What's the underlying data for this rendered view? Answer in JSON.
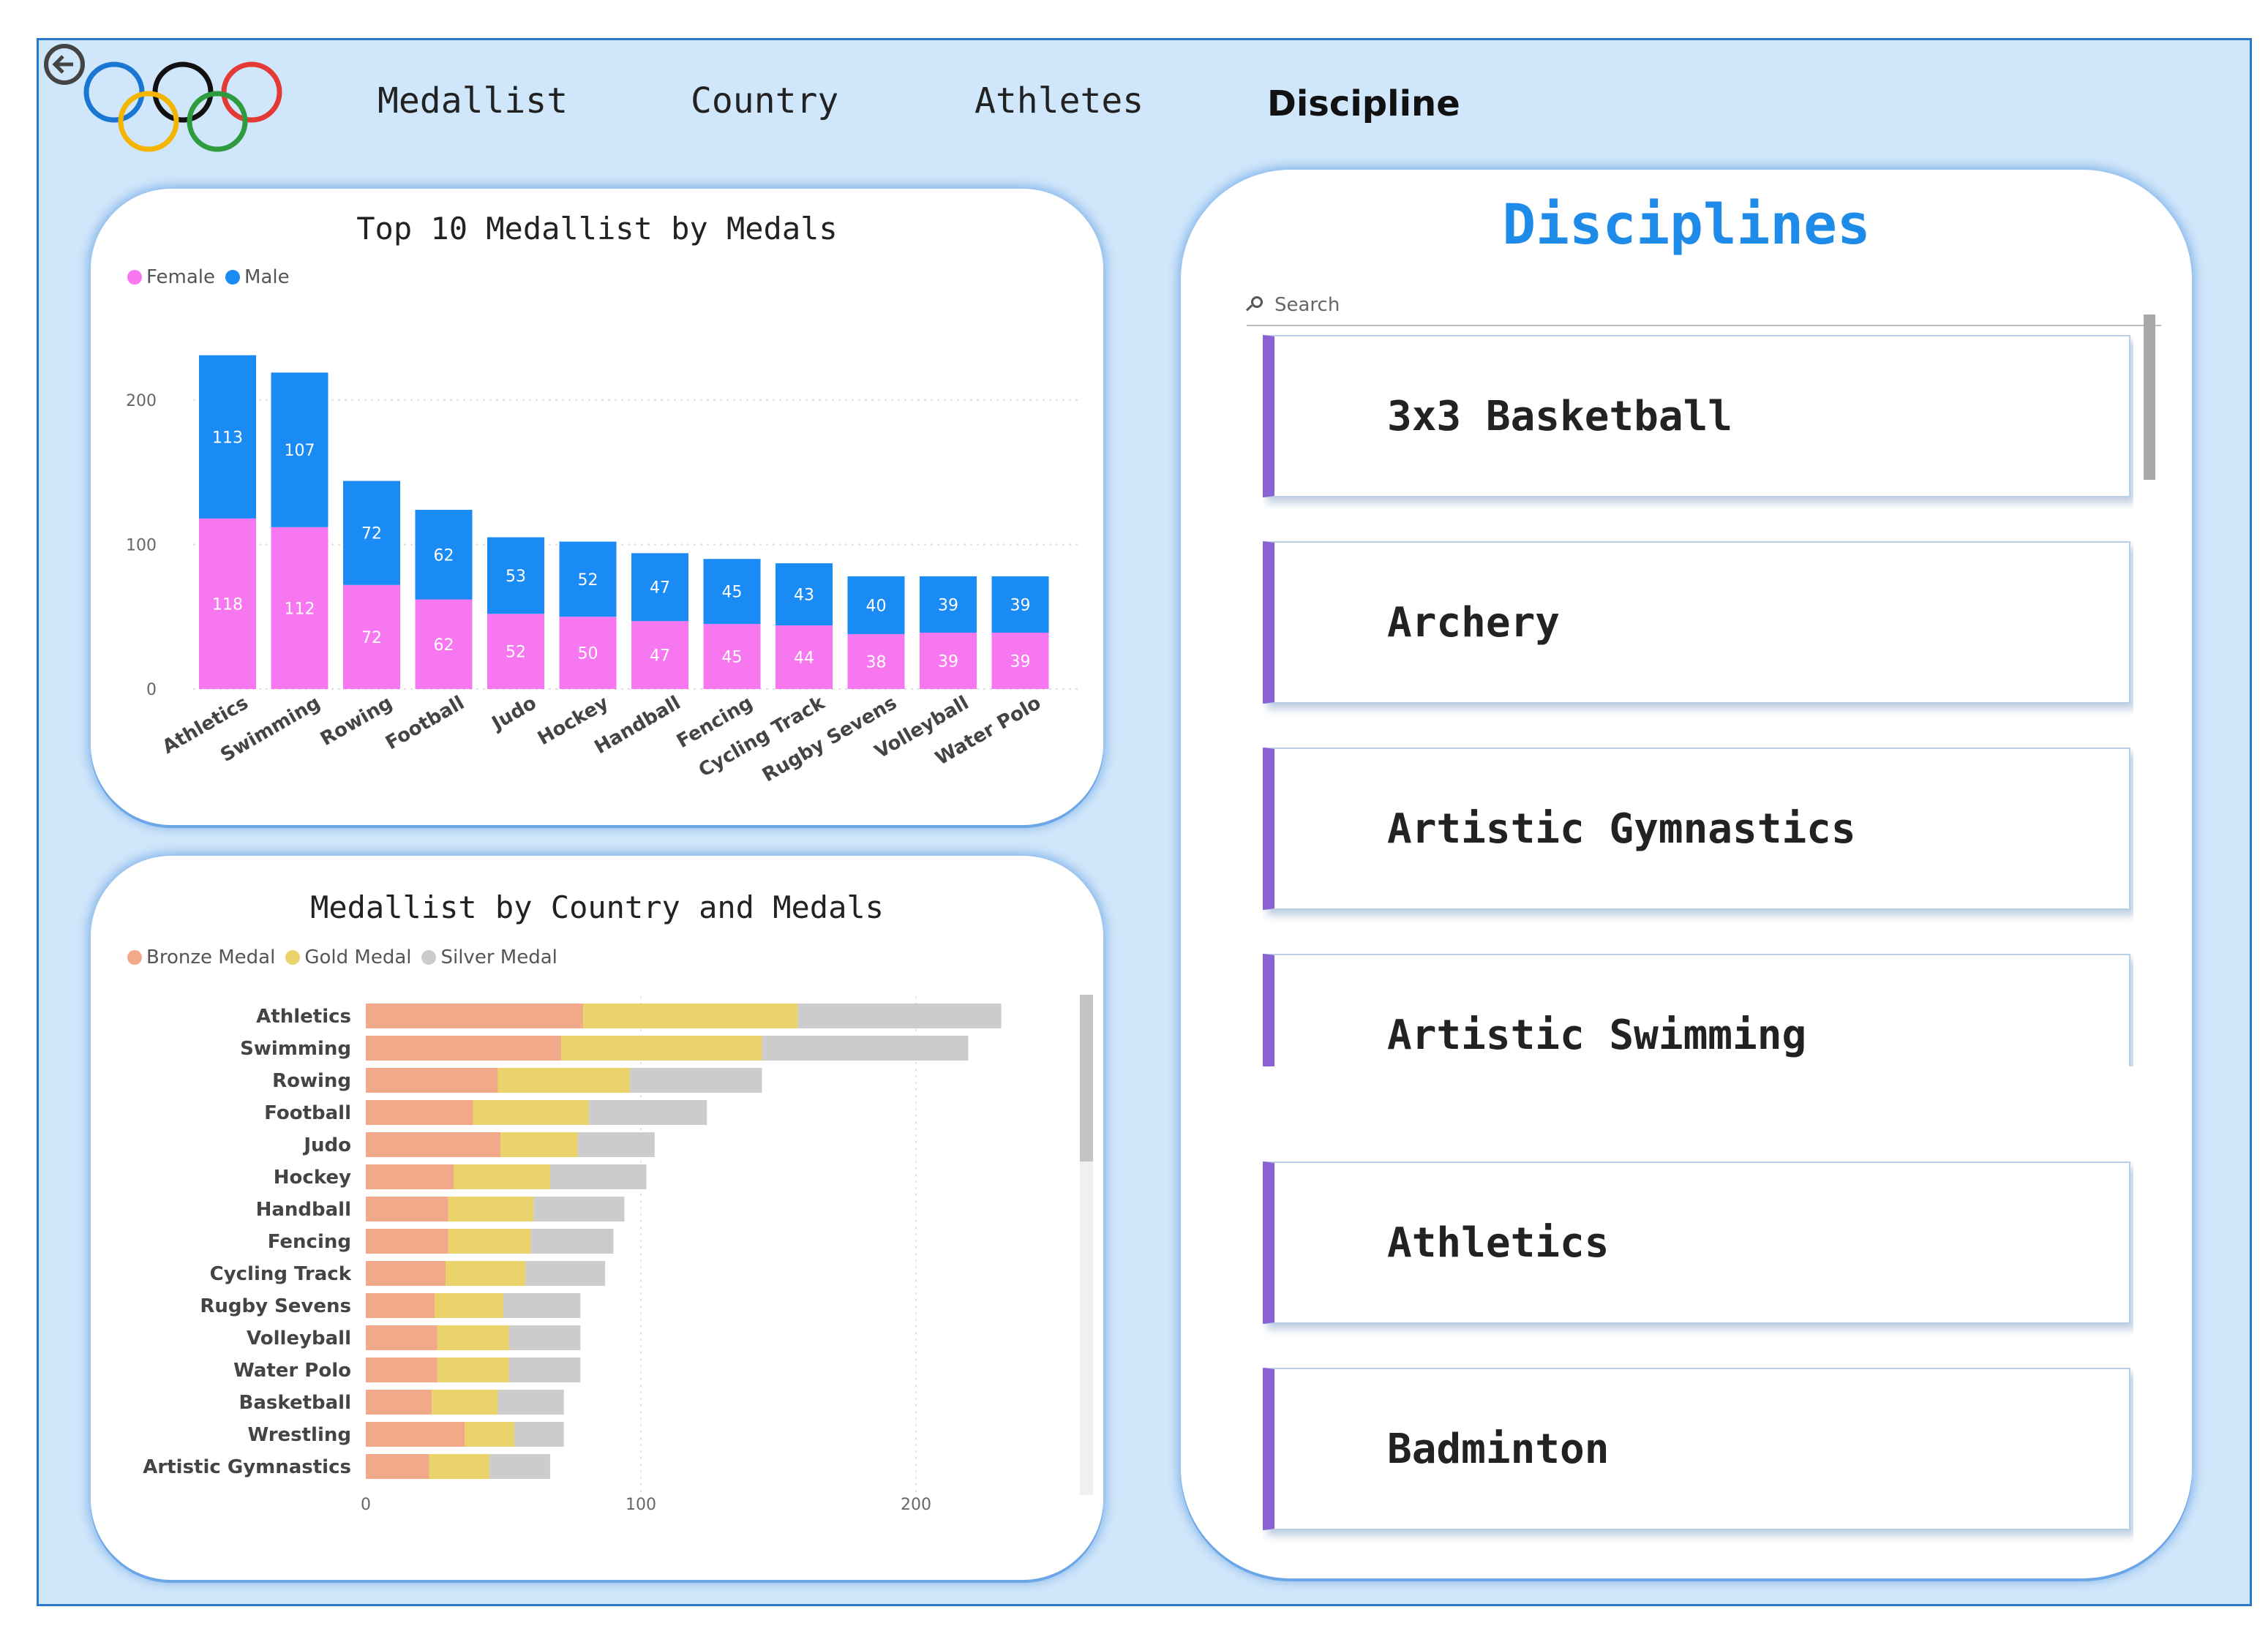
{
  "nav": {
    "items": [
      {
        "label": "Medallist",
        "active": false
      },
      {
        "label": "Country",
        "active": false
      },
      {
        "label": "Athletes",
        "active": false
      },
      {
        "label": "Discipline",
        "active": true
      }
    ]
  },
  "icons": {
    "back": "back-arrow-icon",
    "logo": "olympic-rings-logo",
    "search": "search-icon"
  },
  "colors": {
    "female": "#f777f0",
    "male": "#1a8af5",
    "bronze": "#f2a98a",
    "gold": "#e9d36a",
    "silver": "#cccccc",
    "accent": "#1f8be8",
    "slicer_bar": "#8a62d6"
  },
  "disciplines_panel": {
    "title": "Disciplines",
    "search_placeholder": "Search",
    "items": [
      "3x3 Basketball",
      "Archery",
      "Artistic Gymnastics",
      "Artistic Swimming",
      "Athletics",
      "Badminton"
    ]
  },
  "chart_data": [
    {
      "type": "bar",
      "stacked": true,
      "orientation": "vertical",
      "title": "Top 10 Medallist by Medals",
      "legend": [
        "Female",
        "Male"
      ],
      "legend_position": "top-left",
      "categories": [
        "Athletics",
        "Swimming",
        "Rowing",
        "Football",
        "Judo",
        "Hockey",
        "Handball",
        "Fencing",
        "Cycling Track",
        "Rugby Sevens",
        "Volleyball",
        "Water Polo"
      ],
      "series": [
        {
          "name": "Female",
          "values": [
            118,
            112,
            72,
            62,
            52,
            50,
            47,
            45,
            44,
            38,
            39,
            39
          ]
        },
        {
          "name": "Male",
          "values": [
            113,
            107,
            72,
            62,
            53,
            52,
            47,
            45,
            43,
            40,
            39,
            39
          ]
        }
      ],
      "yticks": [
        "0",
        "100",
        "200"
      ],
      "ylim": [
        0,
        245
      ],
      "grid": true
    },
    {
      "type": "bar",
      "stacked": true,
      "orientation": "horizontal",
      "title": "Medallist by Country and Medals",
      "legend": [
        "Bronze Medal",
        "Gold Medal",
        "Silver Medal"
      ],
      "legend_position": "top-left",
      "categories": [
        "Athletics",
        "Swimming",
        "Rowing",
        "Football",
        "Judo",
        "Hockey",
        "Handball",
        "Fencing",
        "Cycling Track",
        "Rugby Sevens",
        "Volleyball",
        "Water Polo",
        "Basketball",
        "Wrestling",
        "Artistic Gymnastics"
      ],
      "series": [
        {
          "name": "Bronze Medal",
          "values": [
            79,
            71,
            48,
            39,
            49,
            32,
            30,
            30,
            29,
            25,
            26,
            26,
            24,
            36,
            23
          ]
        },
        {
          "name": "Gold Medal",
          "values": [
            78,
            73,
            48,
            42,
            28,
            35,
            31,
            30,
            29,
            25,
            26,
            26,
            24,
            18,
            22
          ]
        },
        {
          "name": "Silver Medal",
          "values": [
            74,
            75,
            48,
            43,
            28,
            35,
            33,
            30,
            29,
            28,
            26,
            26,
            24,
            18,
            22
          ]
        }
      ],
      "xticks": [
        "0",
        "100",
        "200"
      ],
      "xlim": [
        0,
        255
      ],
      "grid": true
    }
  ]
}
